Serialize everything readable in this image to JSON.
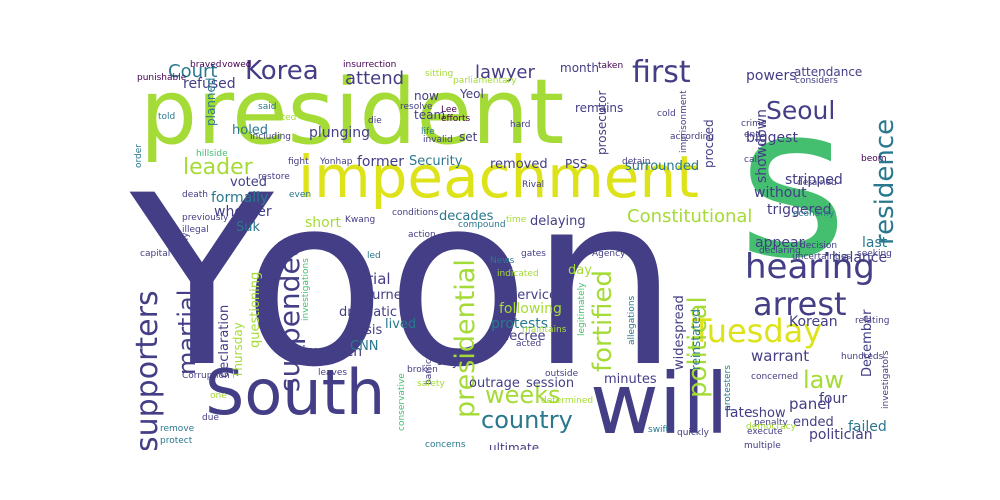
{
  "colors": {
    "background": "#ffffff",
    "deep_purple": "#433e85",
    "lime": "#a5db36",
    "yellow": "#dde318",
    "green": "#44bf70",
    "teal": "#2a788e",
    "blue": "#31688e",
    "dark": "#440154"
  },
  "words": [
    "Yoon",
    "president",
    "s",
    "impeachment",
    "South",
    "will",
    "Seoul",
    "arrest",
    "hearing",
    "Tuesday",
    "supporters",
    "suspended",
    "first",
    "Korea",
    "presidential",
    "fortified",
    "political",
    "residence",
    "country",
    "weeks",
    "martial",
    "law",
    "Constitutional",
    "leader",
    "Court",
    "lawyer",
    "attend",
    "refused",
    "insurrection",
    "vowed",
    "braved",
    "punishable",
    "planned",
    "said",
    "told",
    "wanted",
    "including",
    "hillside",
    "restore",
    "fight",
    "death",
    "previously",
    "illegal",
    "capital",
    "heavily",
    "Corruption",
    "protect",
    "remove",
    "due",
    "one",
    "even",
    "Yonhap",
    "voted",
    "formally",
    "whether",
    "holed",
    "Suk",
    "plunging",
    "Security",
    "former",
    "PSS",
    "removed",
    "surrounded",
    "delaying",
    "decades",
    "short",
    "parliament",
    "questioning",
    "Thursday",
    "declaration",
    "impeach",
    "trial",
    "turned",
    "dramatic",
    "lived",
    "crisis",
    "CNN",
    "Service",
    "following",
    "protests",
    "decree",
    "day",
    "say",
    "outrage",
    "session",
    "minutes",
    "widespread",
    "reinstated",
    "month",
    "taken",
    "remains",
    "prosecutor",
    "team",
    "now",
    "Yeol",
    "set",
    "Lee",
    "efforts",
    "life",
    "resolve",
    "sitting",
    "parliamentary",
    "invalid",
    "die",
    "Kwang",
    "conditions",
    "compound",
    "action",
    "led",
    "News",
    "gates",
    "indicated",
    "Rival",
    "Agency",
    "allegations",
    "legitimately",
    "maintains",
    "acted",
    "barricaded",
    "safety",
    "leaves",
    "broken",
    "outside",
    "conservative",
    "determined",
    "concerns",
    "swift",
    "quickly",
    "protesters",
    "ultimate",
    "investigations",
    "proceed",
    "detain",
    "imprisonment",
    "according",
    "cold",
    "hard",
    "time",
    "triggered",
    "without",
    "showdown",
    "stripped",
    "biggest",
    "powers",
    "attendance",
    "considers",
    "crime",
    "end",
    "call",
    "detained",
    "beom",
    "economy",
    "uncertainties",
    "declaring",
    "seeking",
    "decision",
    "appear",
    "last",
    "balance",
    "Korean",
    "relating",
    "warrant",
    "hundreds",
    "investigators",
    "December",
    "four",
    "failed",
    "panel",
    "fate",
    "ended",
    "show",
    "concerned",
    "penalty",
    "execute",
    "multiple",
    "democracy",
    "politician",
    "order"
  ]
}
